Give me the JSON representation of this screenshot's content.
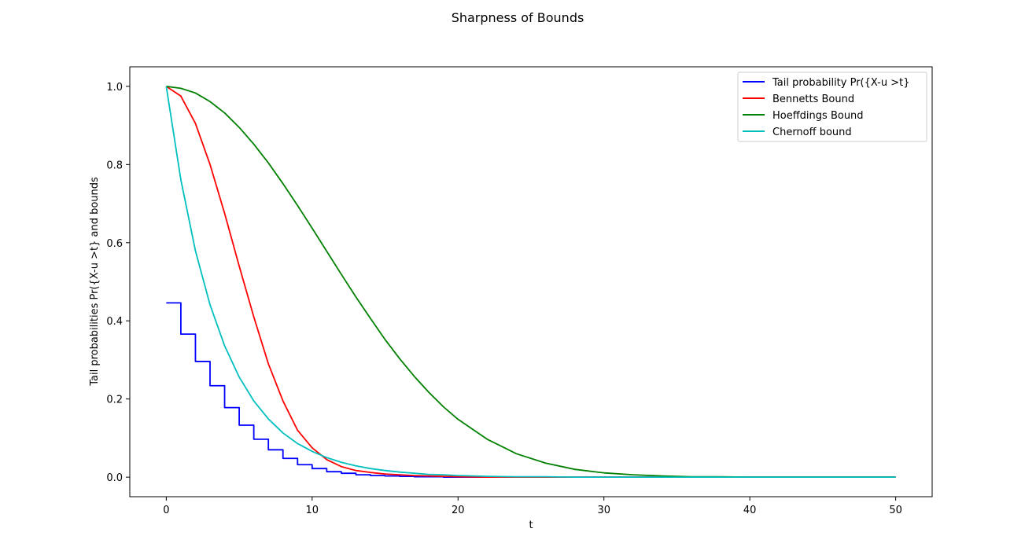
{
  "chart_data": {
    "type": "line",
    "title": "Sharpness of Bounds",
    "xlabel": "t",
    "ylabel": "Tail probabilities Pr({X-u >t} and bounds",
    "xlim": [
      -2.5,
      52.5
    ],
    "ylim": [
      -0.05,
      1.05
    ],
    "xticks": [
      0,
      10,
      20,
      30,
      40,
      50
    ],
    "yticks": [
      0.0,
      0.2,
      0.4,
      0.6,
      0.8,
      1.0
    ],
    "xtick_labels": [
      "0",
      "10",
      "20",
      "30",
      "40",
      "50"
    ],
    "ytick_labels": [
      "0.0",
      "0.2",
      "0.4",
      "0.6",
      "0.8",
      "1.0"
    ],
    "grid": false,
    "legend_position": "top-right",
    "x": [
      0,
      1,
      2,
      3,
      4,
      5,
      6,
      7,
      8,
      9,
      10,
      11,
      12,
      13,
      14,
      15,
      16,
      17,
      18,
      19,
      20,
      22,
      24,
      26,
      28,
      30,
      32,
      34,
      36,
      38,
      40,
      42,
      44,
      46,
      48,
      50
    ],
    "series": [
      {
        "name": "Tail probability Pr({X-u >t}",
        "color": "#0000ff",
        "step": true,
        "values": [
          0.446,
          0.366,
          0.296,
          0.234,
          0.178,
          0.133,
          0.097,
          0.07,
          0.048,
          0.032,
          0.022,
          0.014,
          0.01,
          0.006,
          0.004,
          0.003,
          0.002,
          0.001,
          0.001,
          0.0,
          0.0,
          0.0,
          0.0,
          0.0,
          0.0,
          0.0,
          0.0,
          0.0,
          0.0,
          0.0,
          0.0,
          0.0,
          0.0,
          0.0,
          0.0,
          0.0
        ]
      },
      {
        "name": "Bennetts Bound",
        "color": "#ff0000",
        "step": false,
        "values": [
          1.0,
          0.975,
          0.905,
          0.8,
          0.675,
          0.54,
          0.41,
          0.29,
          0.195,
          0.12,
          0.075,
          0.045,
          0.027,
          0.017,
          0.012,
          0.008,
          0.006,
          0.004,
          0.003,
          0.002,
          0.001,
          0.0,
          0.0,
          0.0,
          0.0,
          0.0,
          0.0,
          0.0,
          0.0,
          0.0,
          0.0,
          0.0,
          0.0,
          0.0,
          0.0,
          0.0
        ]
      },
      {
        "name": "Hoeffdings Bound",
        "color": "#008000",
        "step": false,
        "values": [
          1.0,
          0.995,
          0.983,
          0.961,
          0.932,
          0.895,
          0.852,
          0.804,
          0.751,
          0.695,
          0.637,
          0.578,
          0.519,
          0.461,
          0.406,
          0.352,
          0.303,
          0.258,
          0.217,
          0.18,
          0.148,
          0.097,
          0.06,
          0.036,
          0.02,
          0.011,
          0.006,
          0.003,
          0.001,
          0.001,
          0.0,
          0.0,
          0.0,
          0.0,
          0.0,
          0.0
        ]
      },
      {
        "name": "Chernoff bound",
        "color": "#00bfbf",
        "step": false,
        "values": [
          1.0,
          0.761,
          0.579,
          0.441,
          0.336,
          0.256,
          0.195,
          0.149,
          0.113,
          0.086,
          0.066,
          0.05,
          0.038,
          0.029,
          0.022,
          0.017,
          0.013,
          0.01,
          0.007,
          0.006,
          0.004,
          0.002,
          0.001,
          0.001,
          0.0,
          0.0,
          0.0,
          0.0,
          0.0,
          0.0,
          0.0,
          0.0,
          0.0,
          0.0,
          0.0,
          0.0
        ]
      }
    ]
  }
}
